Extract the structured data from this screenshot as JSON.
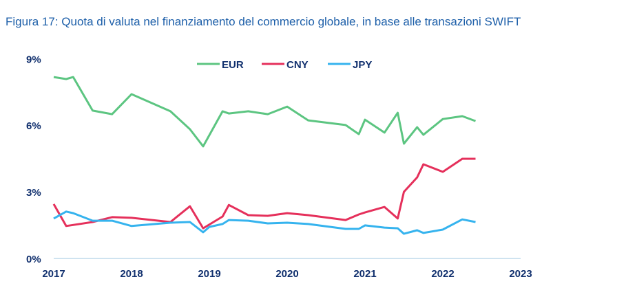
{
  "chart_data": {
    "type": "line",
    "title": "Figura 17: Quota di valuta nel finanziamento del commercio globale, in base alle transazioni SWIFT",
    "xlabel": "",
    "ylabel": "",
    "xlim": [
      2017,
      2023
    ],
    "ylim": [
      0,
      9
    ],
    "x_ticks": [
      "2017",
      "2018",
      "2019",
      "2020",
      "2021",
      "2022",
      "2023"
    ],
    "y_ticks": [
      "0%",
      "3%",
      "6%",
      "9%"
    ],
    "grid": false,
    "legend_position": "top-center",
    "series": [
      {
        "name": "EUR",
        "color": "#5cc581",
        "x": [
          2017.0,
          2017.16,
          2017.25,
          2017.5,
          2017.75,
          2018.0,
          2018.5,
          2018.75,
          2018.92,
          2019.17,
          2019.25,
          2019.5,
          2019.75,
          2020.0,
          2020.27,
          2020.75,
          2020.92,
          2021.0,
          2021.25,
          2021.42,
          2021.5,
          2021.67,
          2021.75,
          2022.0,
          2022.25,
          2022.42
        ],
        "y": [
          8.17,
          8.08,
          8.17,
          6.66,
          6.5,
          7.4,
          6.63,
          5.82,
          5.05,
          6.63,
          6.53,
          6.63,
          6.5,
          6.84,
          6.22,
          6.01,
          5.6,
          6.25,
          5.67,
          6.56,
          5.17,
          5.91,
          5.57,
          6.28,
          6.41,
          6.19
        ]
      },
      {
        "name": "CNY",
        "color": "#e5305b",
        "x": [
          2017.0,
          2017.16,
          2017.5,
          2017.75,
          2018.0,
          2018.5,
          2018.75,
          2018.92,
          2019.17,
          2019.25,
          2019.5,
          2019.75,
          2020.0,
          2020.27,
          2020.75,
          2020.92,
          2021.0,
          2021.25,
          2021.42,
          2021.5,
          2021.67,
          2021.75,
          2022.0,
          2022.25,
          2022.42
        ],
        "y": [
          2.45,
          1.46,
          1.64,
          1.86,
          1.83,
          1.64,
          2.35,
          1.36,
          1.89,
          2.41,
          1.95,
          1.92,
          2.04,
          1.95,
          1.73,
          1.98,
          2.07,
          2.32,
          1.8,
          3.0,
          3.65,
          4.24,
          3.9,
          4.49,
          4.49
        ]
      },
      {
        "name": "JPY",
        "color": "#35b3ee",
        "x": [
          2017.0,
          2017.16,
          2017.25,
          2017.5,
          2017.75,
          2018.0,
          2018.5,
          2018.75,
          2018.92,
          2019.0,
          2019.17,
          2019.25,
          2019.5,
          2019.75,
          2020.0,
          2020.27,
          2020.75,
          2020.92,
          2021.0,
          2021.25,
          2021.42,
          2021.5,
          2021.67,
          2021.75,
          2022.0,
          2022.25,
          2022.42
        ],
        "y": [
          1.8,
          2.11,
          2.04,
          1.7,
          1.7,
          1.46,
          1.61,
          1.64,
          1.18,
          1.42,
          1.55,
          1.73,
          1.7,
          1.58,
          1.61,
          1.55,
          1.33,
          1.33,
          1.49,
          1.39,
          1.36,
          1.11,
          1.27,
          1.15,
          1.3,
          1.76,
          1.64
        ]
      }
    ]
  },
  "colors": {
    "axis": "#cfe3f0",
    "title": "#1d5fa9",
    "ticks": "#11306e"
  }
}
